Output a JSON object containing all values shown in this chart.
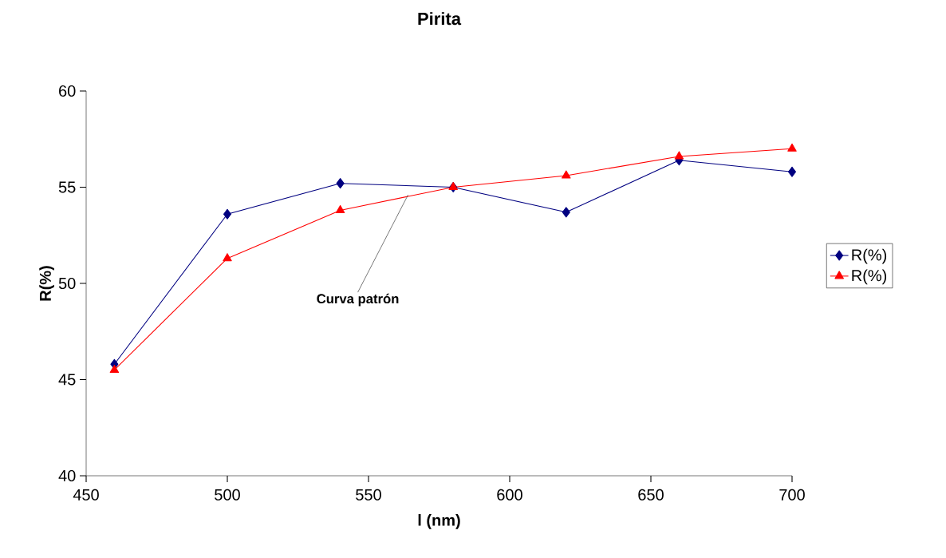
{
  "chart_data": {
    "type": "line",
    "title": "Pirita",
    "xlabel": "l **(nm)**",
    "ylabel": "R(%)",
    "x": [
      460,
      500,
      540,
      580,
      620,
      660,
      700
    ],
    "series": [
      {
        "name": "R(%)",
        "color": "#000080",
        "marker": "diamond",
        "values": [
          45.8,
          53.6,
          55.2,
          55.0,
          53.7,
          56.4,
          55.8
        ]
      },
      {
        "name": "R(%)",
        "color": "#ff0000",
        "marker": "triangle",
        "values": [
          45.5,
          51.3,
          53.8,
          55.0,
          55.6,
          56.6,
          57.0
        ]
      }
    ],
    "annotations": [
      {
        "text": "Curva patrón",
        "x": 564,
        "y": 54.6
      }
    ],
    "xlim": [
      450,
      700
    ],
    "xticks": [
      450,
      500,
      550,
      600,
      650,
      700
    ],
    "ylim": [
      40,
      60
    ],
    "yticks": [
      40,
      45,
      50,
      55,
      60
    ],
    "grid": false,
    "legend": "right",
    "line_style": "solid"
  }
}
